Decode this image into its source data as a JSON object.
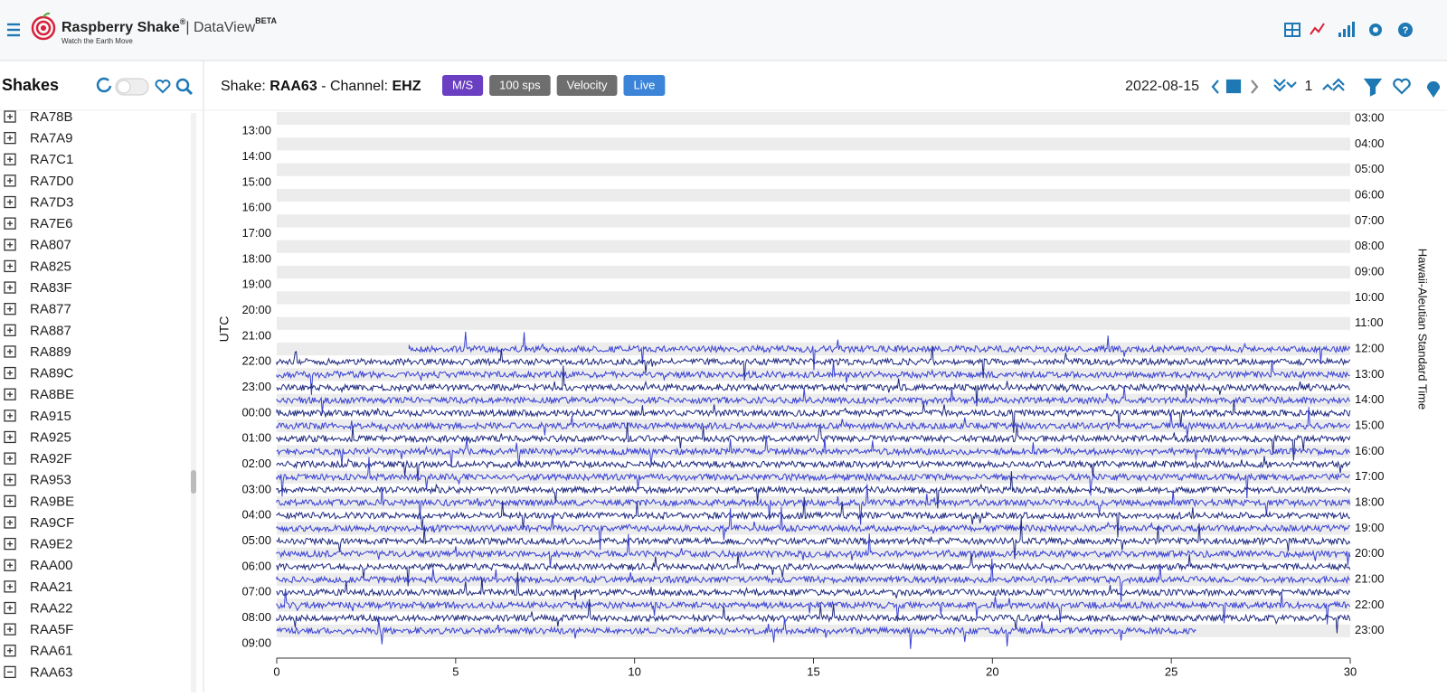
{
  "header": {
    "brand": "Raspberry Shake",
    "registered": "®",
    "product": "| DataView",
    "badge": "BETA",
    "tagline": "Watch the Earth Move"
  },
  "sidebar": {
    "title": "Shakes",
    "stations": [
      "RA78B",
      "RA7A9",
      "RA7C1",
      "RA7D0",
      "RA7D3",
      "RA7E6",
      "RA807",
      "RA825",
      "RA83F",
      "RA877",
      "RA887",
      "RA889",
      "RA89C",
      "RA8BE",
      "RA915",
      "RA925",
      "RA92F",
      "RA953",
      "RA9BE",
      "RA9CF",
      "RA9E2",
      "RAA00",
      "RAA21",
      "RAA22",
      "RAA5F",
      "RAA61",
      "RAA63"
    ]
  },
  "toolbar": {
    "shake_label": "Shake:",
    "shake": "RAA63",
    "channel_label": "- Channel:",
    "channel": "EHZ",
    "badges": [
      "M/S",
      "100 sps",
      "Velocity",
      "Live"
    ],
    "date": "2022-08-15",
    "zoom": "1"
  },
  "chart_data": {
    "type": "helicorder",
    "y_label": "UTC",
    "y2_label": "Hawaii-Aleutian Standard Time",
    "xlim": [
      0,
      30
    ],
    "xticks": [
      0,
      5,
      10,
      15,
      20,
      25,
      30
    ],
    "utc_labels": [
      "13:00",
      "14:00",
      "15:00",
      "16:00",
      "17:00",
      "18:00",
      "19:00",
      "20:00",
      "21:00",
      "22:00",
      "23:00",
      "00:00",
      "01:00",
      "02:00",
      "03:00",
      "04:00",
      "05:00",
      "06:00",
      "07:00",
      "08:00",
      "09:00"
    ],
    "local_labels": [
      "03:00",
      "04:00",
      "05:00",
      "06:00",
      "07:00",
      "08:00",
      "09:00",
      "10:00",
      "11:00",
      "12:00",
      "13:00",
      "14:00",
      "15:00",
      "16:00",
      "17:00",
      "18:00",
      "19:00",
      "20:00",
      "21:00",
      "22:00",
      "23:00"
    ],
    "colors": [
      "#3a42d4",
      "#1f2a7e"
    ],
    "trace_start": [
      null,
      null,
      null,
      null,
      null,
      null,
      null,
      null,
      null,
      null,
      null,
      null,
      null,
      null,
      null,
      null,
      null,
      null,
      3.7,
      0,
      0,
      0,
      0,
      0,
      0,
      0,
      0,
      0,
      0,
      0,
      0,
      0,
      0,
      0,
      0,
      0,
      0,
      0,
      0,
      0,
      0,
      null
    ],
    "trace_end": [
      null,
      null,
      null,
      null,
      null,
      null,
      null,
      null,
      null,
      null,
      null,
      null,
      null,
      null,
      null,
      null,
      null,
      null,
      30,
      30,
      30,
      30,
      30,
      30,
      30,
      30,
      30,
      30,
      30,
      30,
      30,
      30,
      30,
      30,
      30,
      30,
      30,
      30,
      30,
      30,
      25.7,
      null
    ]
  }
}
